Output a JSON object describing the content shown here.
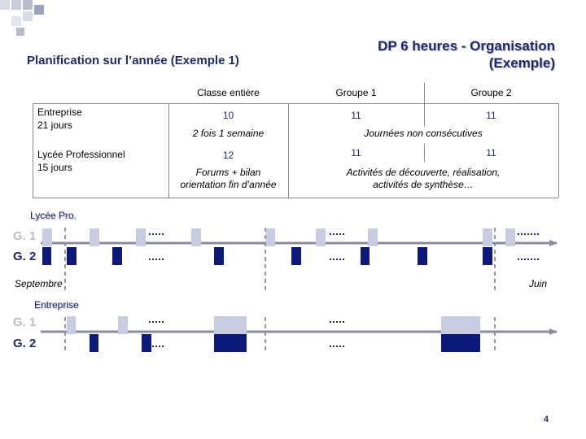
{
  "title_left": "Planification sur l’année (Exemple 1)",
  "title_right": [
    "DP 6 heures - Organisation",
    "(Exemple)"
  ],
  "table": {
    "headers": [
      "Classe entière",
      "Groupe 1",
      "Groupe 2"
    ],
    "row1_label": [
      "Entreprise",
      "21 jours"
    ],
    "row1_values": [
      "10",
      "11",
      "11"
    ],
    "row1_notes": [
      "2 fois 1 semaine",
      "Journées non consécutives"
    ],
    "row2_label": [
      "Lycée Professionnel",
      "15 jours"
    ],
    "row2_values": [
      "12",
      "11",
      "11"
    ],
    "row2_notes": [
      [
        "Forums + bilan",
        "orientation fin d’année"
      ],
      [
        "Activités de découverte, réalisation,",
        "activités de synthèse…"
      ]
    ]
  },
  "timeline": {
    "section1_label": "Lycée Pro.",
    "section2_label": "Entreprise",
    "g1_label": "G. 1",
    "g2_label": "G. 2",
    "start_label": "Septembre",
    "end_label": "Juin",
    "g1_color": "#c8cce0",
    "g2_color": "#0d1a7a"
  },
  "page_number": "4"
}
